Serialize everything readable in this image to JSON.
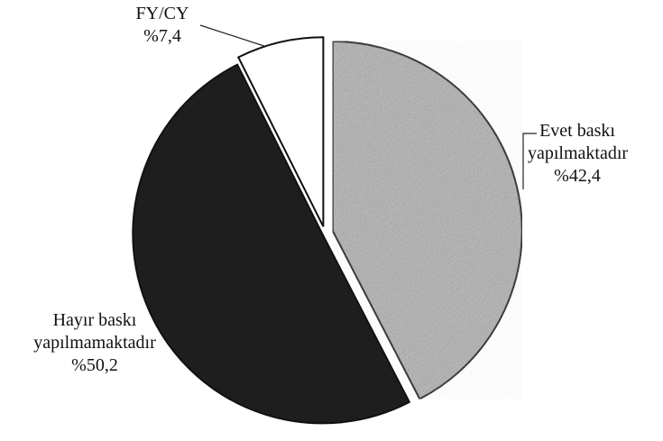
{
  "chart_data": {
    "type": "pie",
    "categories": [
      "Evet baskı yapılmaktadır",
      "Hayır baskı yapılmamaktadır",
      "FY/CY"
    ],
    "values": [
      42.4,
      50.2,
      7.4
    ],
    "value_labels": [
      "%42,4",
      "%50,2",
      "%7,4"
    ],
    "colors": [
      "#b8b8b8",
      "#1e1e1e",
      "#ffffff"
    ]
  }
}
